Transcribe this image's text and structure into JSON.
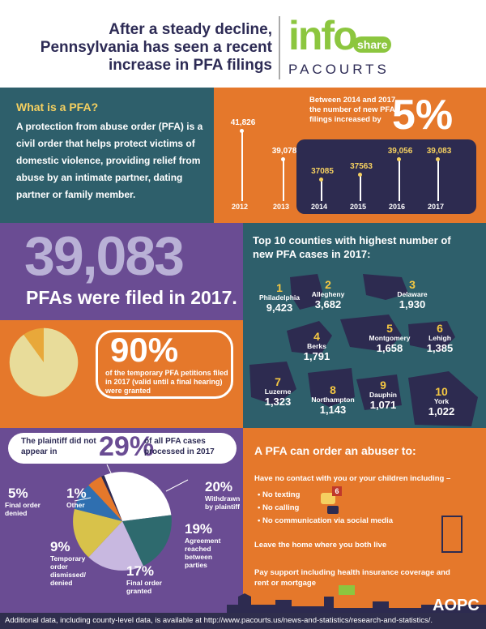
{
  "title": "After a steady decline, Pennsylvania has seen a recent increase in PFA filings",
  "logo": {
    "info": "info",
    "share": "share",
    "pacourts": "PACOURTS"
  },
  "what_is": {
    "heading": "What is a PFA?",
    "body": "A protection from abuse order (PFA) is a civil order that helps protect victims of domestic violence, providing relief from abuse by an intimate partner, dating partner or family member."
  },
  "increase": {
    "text": "Between 2014 and 2017, the number of new PFA filings increased by",
    "pct": "5%"
  },
  "chart_data": {
    "type": "line",
    "categories": [
      "2012",
      "2013",
      "2014",
      "2015",
      "2016",
      "2017"
    ],
    "values": [
      41826,
      39078,
      37085,
      37563,
      39056,
      39083
    ],
    "labels": [
      "41,826",
      "39,078",
      "37085",
      "37563",
      "39,056",
      "39,083"
    ]
  },
  "filed": {
    "number": "39,083",
    "text": "PFAs were filed in 2017."
  },
  "granted": {
    "pct": "90%",
    "text": "of the temporary PFA petitions filed in 2017 (valid until a final hearing) were granted",
    "fraction": 0.9
  },
  "plaintiff": {
    "left": "The plaintiff did not appear in",
    "pct": "29%",
    "right": "of all PFA cases processed in 2017",
    "slices": [
      {
        "pct": "29%",
        "label": "",
        "value": 29,
        "color": "#ffffff"
      },
      {
        "pct": "20%",
        "label": "Withdrawn by plaintiff",
        "value": 20,
        "color": "#2e6a6e"
      },
      {
        "pct": "19%",
        "label": "Agreement reached between parties",
        "value": 19,
        "color": "#c8b8e0"
      },
      {
        "pct": "17%",
        "label": "Final order granted",
        "value": 17,
        "color": "#d8c24a"
      },
      {
        "pct": "9%",
        "label": "Temporary order dismissed/ denied",
        "value": 9,
        "color": "#2f6fb0"
      },
      {
        "pct": "5%",
        "label": "Final order denied",
        "value": 5,
        "color": "#e5782b"
      },
      {
        "pct": "1%",
        "label": "Other",
        "value": 1,
        "color": "#2d2b50"
      }
    ]
  },
  "counties": {
    "heading": "Top 10 counties with highest number of new PFA cases in 2017:",
    "items": [
      {
        "rank": "1",
        "name": "Philadelphia",
        "value": "9,423"
      },
      {
        "rank": "2",
        "name": "Allegheny",
        "value": "3,682"
      },
      {
        "rank": "3",
        "name": "Delaware",
        "value": "1,930"
      },
      {
        "rank": "4",
        "name": "Berks",
        "value": "1,791"
      },
      {
        "rank": "5",
        "name": "Montgomery",
        "value": "1,658"
      },
      {
        "rank": "6",
        "name": "Lehigh",
        "value": "1,385"
      },
      {
        "rank": "7",
        "name": "Luzerne",
        "value": "1,323"
      },
      {
        "rank": "8",
        "name": "Northampton",
        "value": "1,143"
      },
      {
        "rank": "9",
        "name": "Dauphin",
        "value": "1,071"
      },
      {
        "rank": "10",
        "name": "York",
        "value": "1,022"
      }
    ]
  },
  "order": {
    "heading": "A PFA can order an abuser to:",
    "no_contact": "Have no contact with you or your children including –",
    "bullets": [
      "No texting",
      "No calling",
      "No communication via social media"
    ],
    "badge": "6",
    "leave": "Leave the home where you both live",
    "support": "Pay support including health insurance coverage and rent or mortgage"
  },
  "brand": "AOPC",
  "footer": "Additional data, including county-level data, is available at http://www.pacourts.us/news-and-statistics/research-and-statistics/."
}
